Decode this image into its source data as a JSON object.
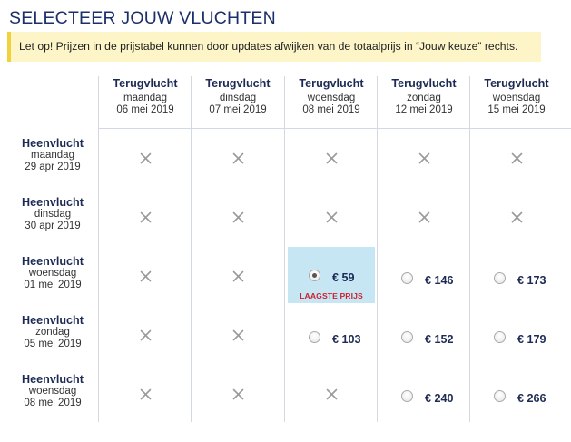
{
  "title": "SELECTEER JOUW VLUCHTEN",
  "notice": "Let op! Prijzen in de prijstabel kunnen door updates afwijken van de totaalprijs in “Jouw keuze” rechts.",
  "columns": [
    {
      "label": "Terugvlucht",
      "day": "maandag",
      "date": "06 mei 2019"
    },
    {
      "label": "Terugvlucht",
      "day": "dinsdag",
      "date": "07 mei 2019"
    },
    {
      "label": "Terugvlucht",
      "day": "woensdag",
      "date": "08 mei 2019"
    },
    {
      "label": "Terugvlucht",
      "day": "zondag",
      "date": "12 mei 2019"
    },
    {
      "label": "Terugvlucht",
      "day": "woensdag",
      "date": "15 mei 2019"
    }
  ],
  "rows": [
    {
      "label": "Heenvlucht",
      "day": "maandag",
      "date": "29 apr 2019",
      "cells": [
        null,
        null,
        null,
        null,
        null
      ]
    },
    {
      "label": "Heenvlucht",
      "day": "dinsdag",
      "date": "30 apr 2019",
      "cells": [
        null,
        null,
        null,
        null,
        null
      ]
    },
    {
      "label": "Heenvlucht",
      "day": "woensdag",
      "date": "01 mei 2019",
      "cells": [
        null,
        null,
        {
          "price": "€ 59",
          "selected": true,
          "badge": "LAAGSTE PRIJS"
        },
        {
          "price": "€ 146"
        },
        {
          "price": "€ 173"
        }
      ]
    },
    {
      "label": "Heenvlucht",
      "day": "zondag",
      "date": "05 mei 2019",
      "cells": [
        null,
        null,
        {
          "price": "€ 103"
        },
        {
          "price": "€ 152"
        },
        {
          "price": "€ 179"
        }
      ]
    },
    {
      "label": "Heenvlucht",
      "day": "woensdag",
      "date": "08 mei 2019",
      "cells": [
        null,
        null,
        null,
        {
          "price": "€ 240"
        },
        {
          "price": "€ 266"
        }
      ]
    }
  ],
  "colors": {
    "accent": "#1c2a55",
    "selected_bg": "#c7e6f4",
    "badge": "#cc1f2e",
    "notice_bg": "#fdf5c8",
    "notice_border": "#f0d23c"
  },
  "icons": {
    "unavailable": "close-icon",
    "option": "radio-button"
  }
}
